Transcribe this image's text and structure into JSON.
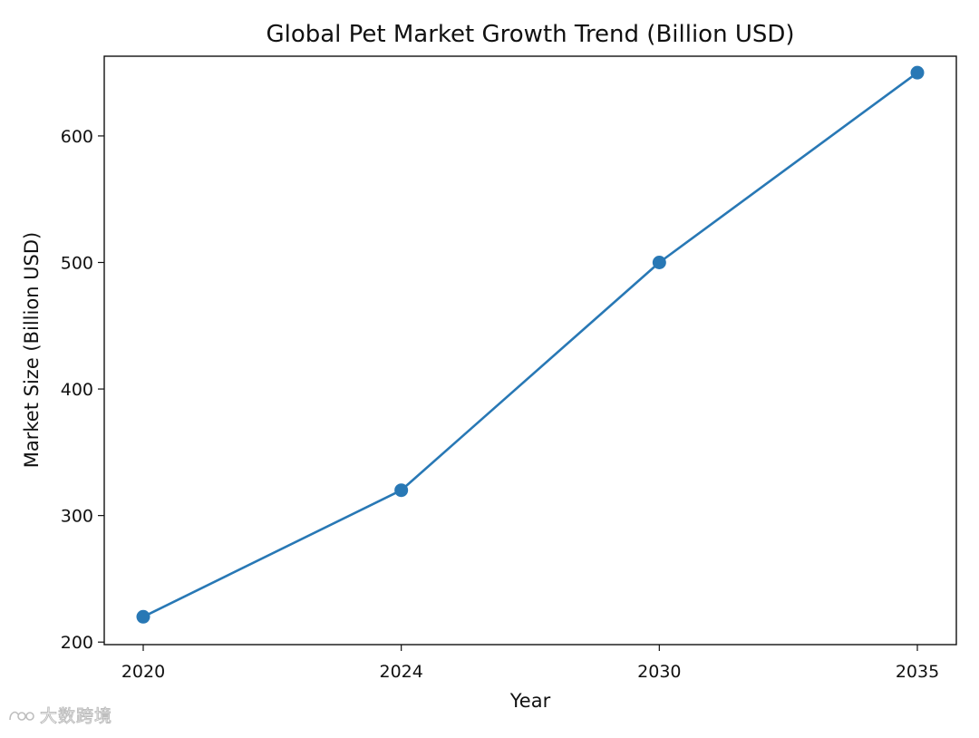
{
  "chart_data": {
    "type": "line",
    "title": "Global Pet Market Growth Trend (Billion USD)",
    "xlabel": "Year",
    "ylabel": "Market Size (Billion USD)",
    "categories": [
      "2020",
      "2024",
      "2030",
      "2035"
    ],
    "series": [
      {
        "name": "Market Size",
        "values": [
          220,
          320,
          500,
          650
        ],
        "color": "#2878b5",
        "marker": "circle"
      }
    ],
    "ylim": [
      198,
      663
    ],
    "yticks": [
      200,
      300,
      400,
      500,
      600
    ],
    "grid": false,
    "legend": "none"
  },
  "watermark": {
    "text": "大数跨境",
    "logo_icon": "brand-logo-icon"
  }
}
